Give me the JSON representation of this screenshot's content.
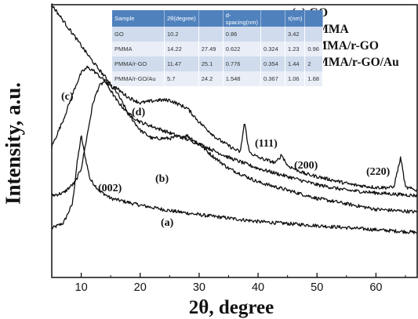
{
  "chart_data": {
    "type": "line",
    "xlabel": "2θ, degree",
    "ylabel": "Intensity, a.u.",
    "xlim": [
      5,
      67
    ],
    "ylim": [
      0,
      100
    ],
    "x_ticks": [
      10,
      20,
      30,
      40,
      50,
      60
    ],
    "y_ticks_shown": false,
    "legend_position": "top-right",
    "legend": [
      "(a) GO",
      "(b) PMMA",
      "(c) PMMA/r-GO",
      "(d) PMMA/r-GO/Au"
    ],
    "series": [
      {
        "name": "(a) GO",
        "x": [
          5,
          7,
          8.5,
          9.3,
          10,
          10.5,
          11.5,
          13,
          15,
          20,
          25,
          30,
          40,
          50,
          60,
          67
        ],
        "y": [
          18,
          20,
          27,
          42,
          52,
          46,
          36,
          32,
          29,
          26.5,
          24.5,
          23,
          20.5,
          19,
          17.5,
          16.5
        ]
      },
      {
        "name": "(b) PMMA",
        "x": [
          5,
          7,
          9,
          10,
          11,
          12,
          13,
          14,
          16,
          18,
          20,
          22,
          25,
          28,
          30,
          32,
          35,
          40,
          45,
          50,
          55,
          60,
          67
        ],
        "y": [
          30,
          31,
          35,
          40,
          52,
          64,
          70,
          72,
          68,
          60,
          54,
          51,
          51,
          52,
          49,
          45,
          40,
          35,
          32,
          29,
          27,
          25,
          24
        ]
      },
      {
        "name": "(c) PMMA/r-GO",
        "x": [
          5,
          7,
          9,
          10,
          11,
          12,
          14,
          16,
          18,
          20,
          25,
          30,
          35,
          40,
          45,
          50,
          55,
          60,
          67
        ],
        "y": [
          48,
          58,
          70,
          75,
          77,
          76,
          72,
          65,
          60,
          57,
          53,
          49,
          44,
          40,
          37,
          34,
          32,
          31,
          30
        ]
      },
      {
        "name": "(d) PMMA/r-GO/Au",
        "x": [
          5,
          6,
          8,
          10,
          12,
          15,
          18,
          20,
          23,
          25,
          28,
          30,
          33,
          36,
          37,
          37.7,
          38.5,
          40,
          43,
          44,
          45,
          48,
          52,
          56,
          60,
          63,
          64.2,
          65,
          67
        ],
        "y": [
          100,
          97,
          91,
          85,
          79,
          71,
          66,
          64,
          65,
          65,
          62,
          57,
          51,
          47,
          46,
          57,
          46,
          44,
          42,
          45,
          41,
          38,
          36,
          34,
          33,
          33,
          44,
          33,
          32
        ]
      }
    ],
    "annotations": [
      {
        "text": "(a)",
        "near_series": "(a) GO"
      },
      {
        "text": "(b)",
        "near_series": "(b) PMMA"
      },
      {
        "text": "(c)",
        "near_series": "(c) PMMA/r-GO"
      },
      {
        "text": "(d)",
        "near_series": "(d) PMMA/r-GO/Au"
      },
      {
        "text": "(002)",
        "peak_x": 10.2
      },
      {
        "text": "(111)",
        "peak_x": 37.7
      },
      {
        "text": "(200)",
        "peak_x": 44
      },
      {
        "text": "(220)",
        "peak_x": 64.2
      }
    ],
    "inset_table": {
      "columns": [
        "Sample",
        "2θ(degree)",
        "",
        "d-spacing(nm)",
        "",
        "τ(nm)",
        ""
      ],
      "rows": [
        [
          "GO",
          "10.2",
          "",
          "0.86",
          "",
          "3.42",
          ""
        ],
        [
          "PMMA",
          "14.22",
          "27.49",
          "0.622",
          "0.324",
          "1.23",
          "0.96"
        ],
        [
          "PMMA/r-GO",
          "11.47",
          "25.1",
          "0.776",
          "0.354",
          "1.44",
          "2"
        ],
        [
          "PMMA/r-GO/Au",
          "5.7",
          "24.2",
          "1.548",
          "0.367",
          "1.06",
          "1.68"
        ]
      ]
    }
  }
}
